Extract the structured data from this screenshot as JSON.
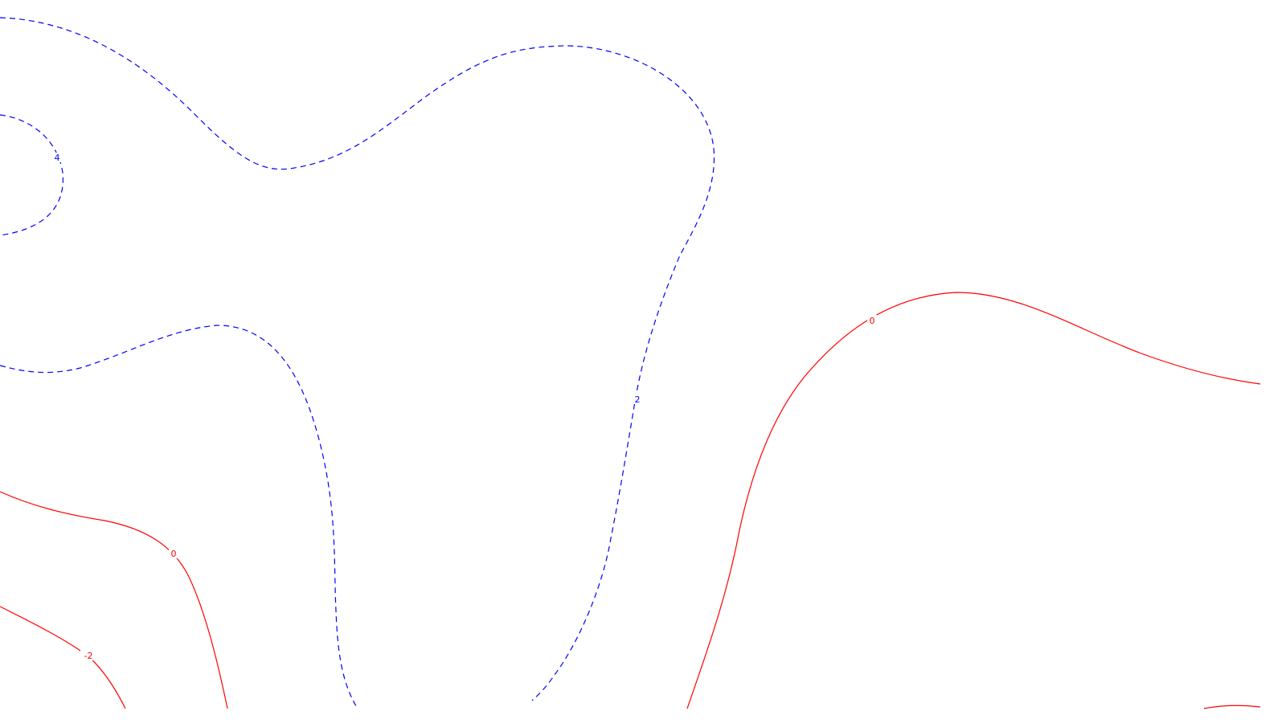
{
  "map": {
    "background": "#ffffff",
    "line_styles": {
      "solid_red": "#ff0000",
      "dashed_blue": "#0000ff"
    },
    "contour_labels": {
      "c_pos4": "4",
      "c_pos2": "2",
      "c_zero_right": "0",
      "c_zero_left": "0",
      "c_neg2": "-2"
    }
  }
}
